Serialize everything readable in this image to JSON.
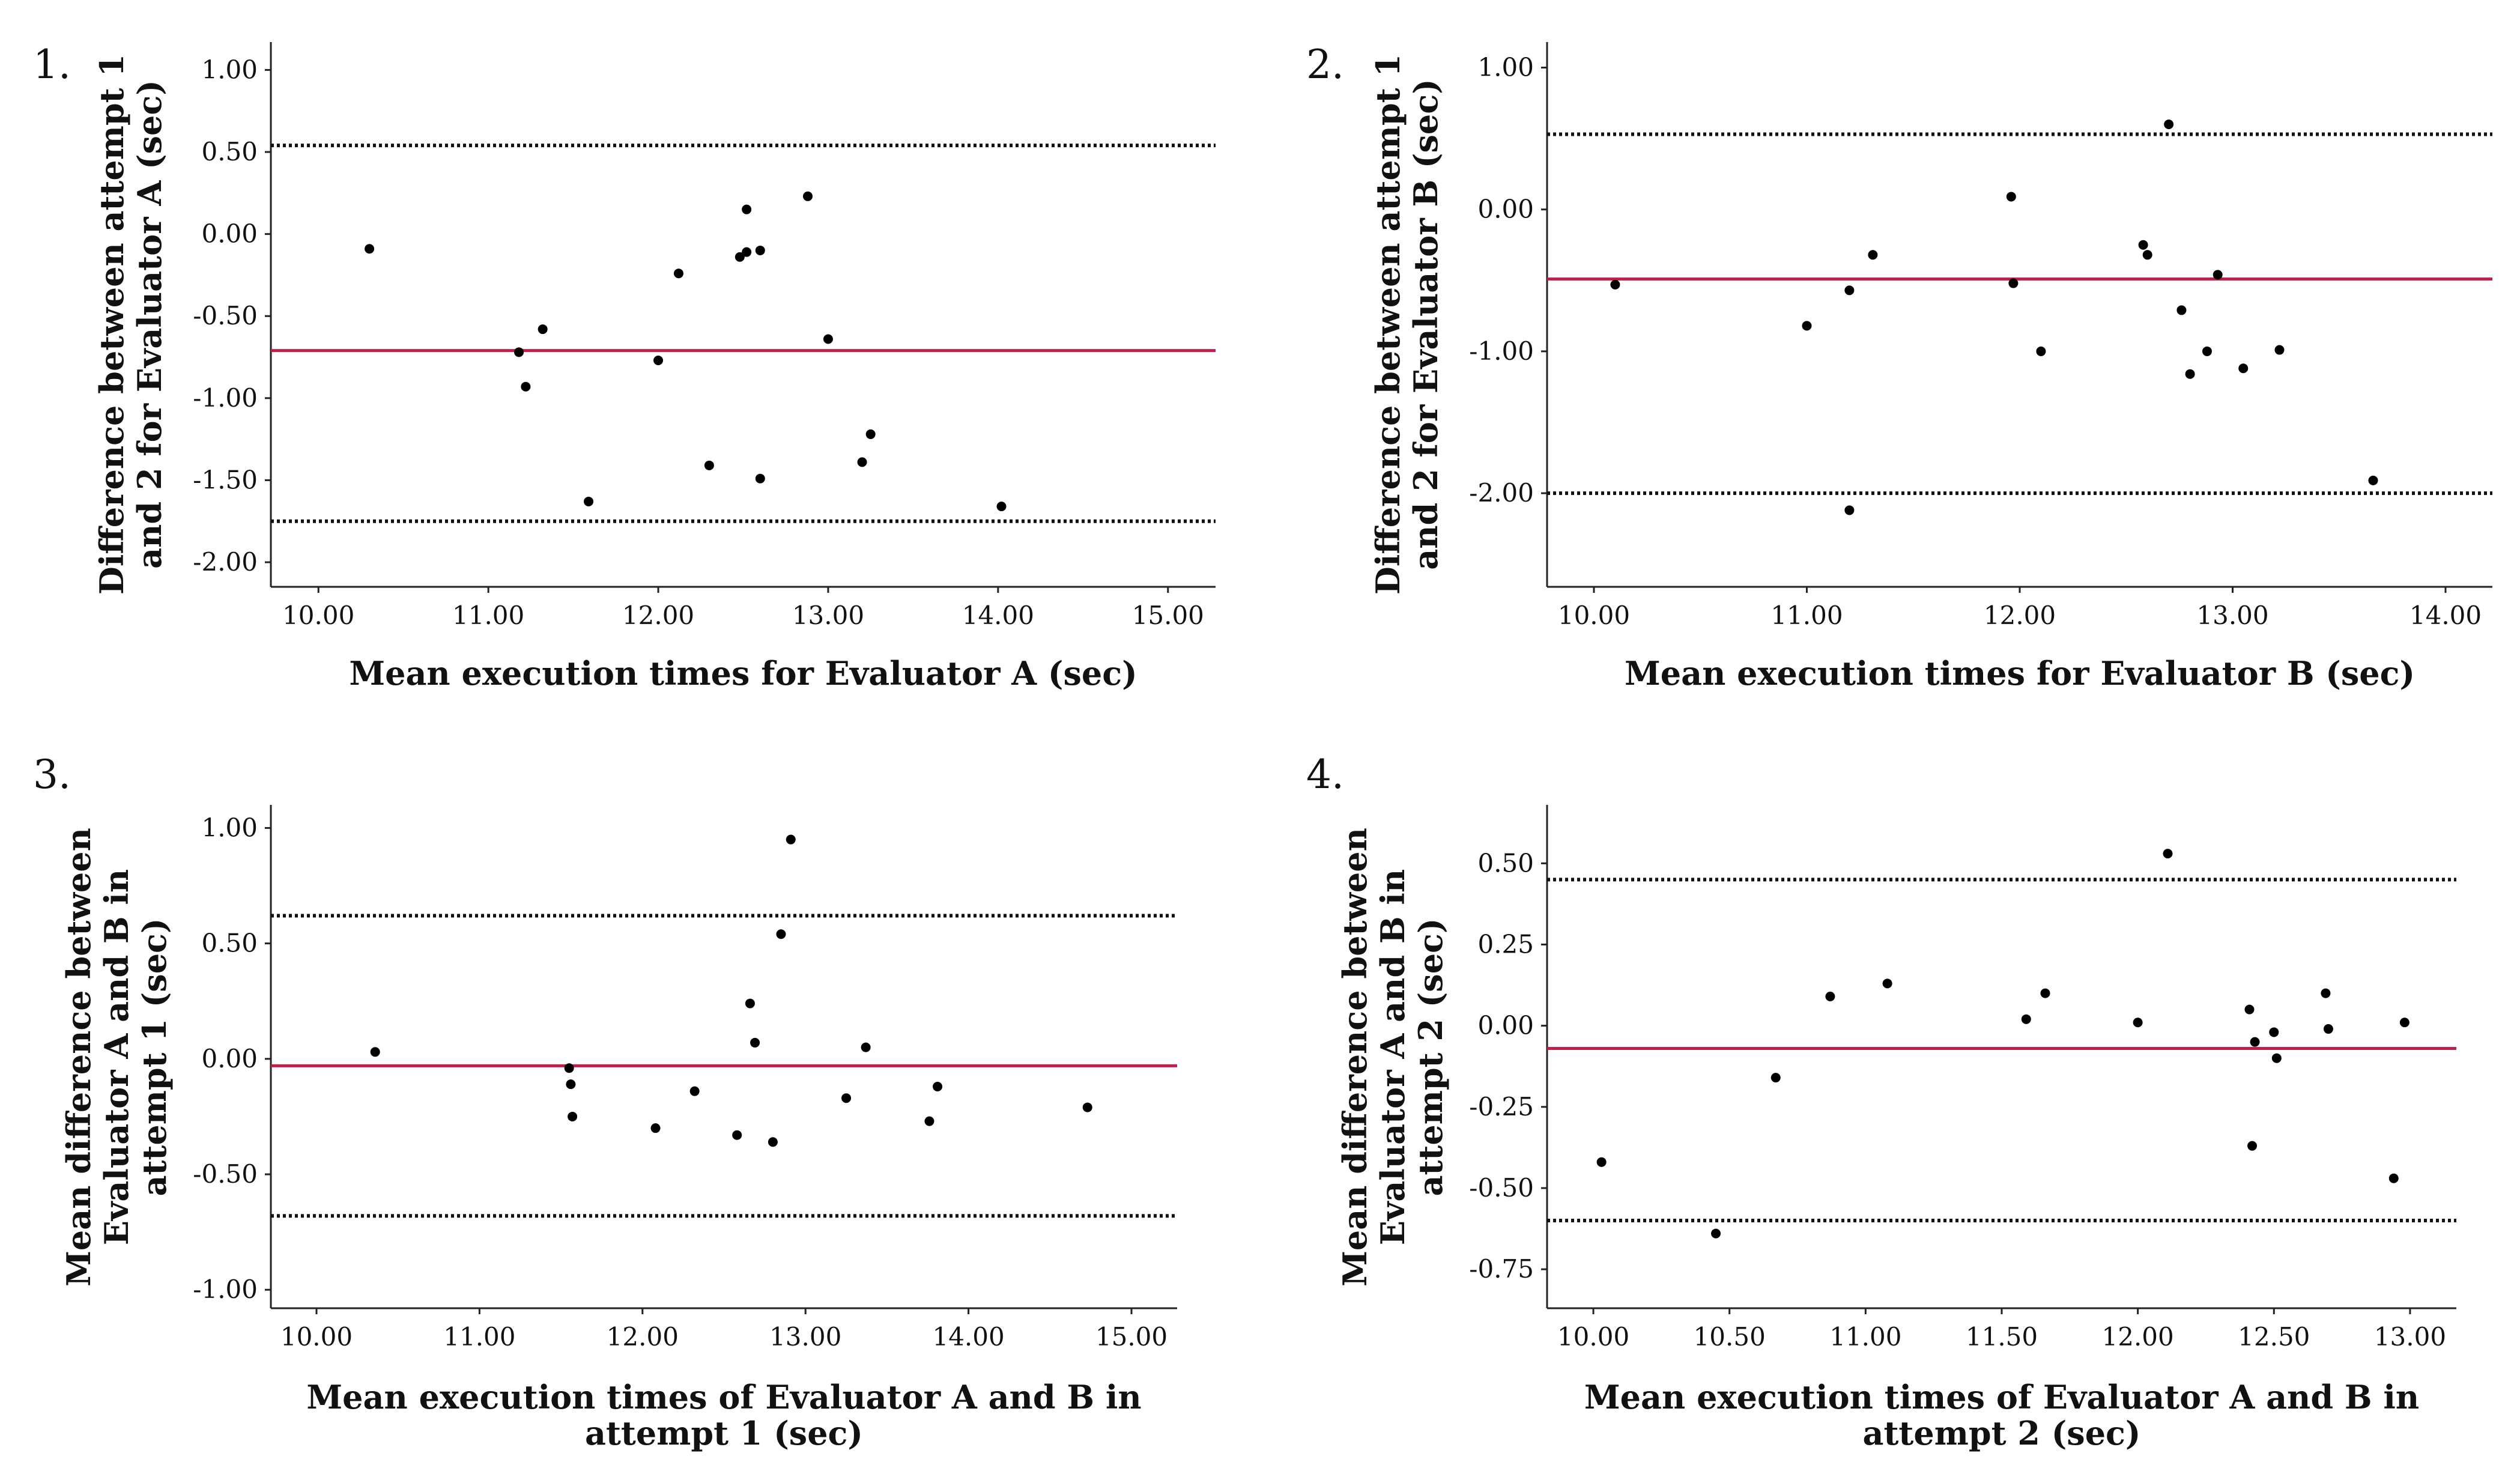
{
  "chart_data": [
    {
      "type": "scatter",
      "panel_label": "1.",
      "title": "",
      "xlabel": "Mean execution times for Evaluator A (sec)",
      "ylabel_lines": [
        "Difference between attempt 1",
        "and 2 for Evaluator A (sec)"
      ],
      "xlim": [
        9.72,
        15.28
      ],
      "ylim": [
        -2.15,
        1.17
      ],
      "xticks": [
        10,
        11,
        12,
        13,
        14,
        15
      ],
      "xtick_labels": [
        "10.00",
        "11.00",
        "12.00",
        "13.00",
        "14.00",
        "15.00"
      ],
      "yticks": [
        1,
        0.5,
        0,
        -0.5,
        -1,
        -1.5,
        -2
      ],
      "ytick_labels": [
        "1.00",
        "0.50",
        "0.00",
        "-0.50",
        "-1.00",
        "-1.50",
        "-2.00"
      ],
      "mean_line": -0.71,
      "limits_of_agreement": [
        0.54,
        -1.75
      ],
      "points": [
        [
          10.3,
          -0.09
        ],
        [
          11.18,
          -0.72
        ],
        [
          11.22,
          -0.93
        ],
        [
          11.32,
          -0.58
        ],
        [
          11.59,
          -1.63
        ],
        [
          12.0,
          -0.77
        ],
        [
          12.12,
          -0.24
        ],
        [
          12.3,
          -1.41
        ],
        [
          12.48,
          -0.14
        ],
        [
          12.52,
          -0.11
        ],
        [
          12.52,
          0.15
        ],
        [
          12.6,
          -0.1
        ],
        [
          12.6,
          -1.49
        ],
        [
          12.88,
          0.23
        ],
        [
          13.0,
          -0.64
        ],
        [
          13.2,
          -1.39
        ],
        [
          13.25,
          -1.22
        ],
        [
          14.02,
          -1.66
        ]
      ]
    },
    {
      "type": "scatter",
      "panel_label": "2.",
      "title": "",
      "xlabel": "Mean execution times for Evaluator B (sec)",
      "ylabel_lines": [
        "Difference between attempt 1",
        "and 2 for Evaluator B (sec)"
      ],
      "xlim": [
        9.78,
        14.22
      ],
      "ylim": [
        -2.66,
        1.18
      ],
      "xticks": [
        10,
        11,
        12,
        13,
        14
      ],
      "xtick_labels": [
        "10.00",
        "11.00",
        "12.00",
        "13.00",
        "14.00"
      ],
      "yticks": [
        1,
        0,
        -1,
        -2
      ],
      "ytick_labels": [
        "1.00",
        "0.00",
        "-1.00",
        "-2.00"
      ],
      "mean_line": -0.49,
      "limits_of_agreement": [
        0.53,
        -2.0
      ],
      "points": [
        [
          10.1,
          -0.53
        ],
        [
          11.0,
          -0.82
        ],
        [
          11.2,
          -2.12
        ],
        [
          11.2,
          -0.57
        ],
        [
          11.31,
          -0.32
        ],
        [
          11.96,
          0.09
        ],
        [
          11.97,
          -0.52
        ],
        [
          12.1,
          -1.0
        ],
        [
          12.58,
          -0.25
        ],
        [
          12.6,
          -0.32
        ],
        [
          12.7,
          0.6
        ],
        [
          12.76,
          -0.71
        ],
        [
          12.8,
          -1.16
        ],
        [
          12.88,
          -1.0
        ],
        [
          12.93,
          -0.46
        ],
        [
          13.05,
          -1.12
        ],
        [
          13.22,
          -0.99
        ],
        [
          13.66,
          -1.91
        ]
      ]
    },
    {
      "type": "scatter",
      "panel_label": "3.",
      "title": "",
      "xlabel_lines": [
        "Mean execution times of Evaluator A and B in",
        "attempt 1 (sec)"
      ],
      "ylabel_lines": [
        "Mean difference between",
        "Evaluator A and B in",
        "attempt 1 (sec)"
      ],
      "xlim": [
        9.72,
        15.28
      ],
      "ylim": [
        -1.08,
        1.1
      ],
      "xticks": [
        10,
        11,
        12,
        13,
        14,
        15
      ],
      "xtick_labels": [
        "10.00",
        "11.00",
        "12.00",
        "13.00",
        "14.00",
        "15.00"
      ],
      "yticks": [
        1,
        0.5,
        0,
        -0.5,
        -1
      ],
      "ytick_labels": [
        "1.00",
        "0.50",
        "0.00",
        "-0.50",
        "-1.00"
      ],
      "mean_line": -0.03,
      "limits_of_agreement": [
        0.62,
        -0.68
      ],
      "points": [
        [
          10.36,
          0.03
        ],
        [
          11.55,
          -0.04
        ],
        [
          11.56,
          -0.11
        ],
        [
          11.57,
          -0.25
        ],
        [
          12.08,
          -0.3
        ],
        [
          12.32,
          -0.14
        ],
        [
          12.58,
          -0.33
        ],
        [
          12.66,
          0.24
        ],
        [
          12.69,
          0.07
        ],
        [
          12.8,
          -0.36
        ],
        [
          12.85,
          0.54
        ],
        [
          12.91,
          0.95
        ],
        [
          13.25,
          -0.17
        ],
        [
          13.37,
          0.05
        ],
        [
          13.76,
          -0.27
        ],
        [
          13.81,
          -0.12
        ],
        [
          14.73,
          -0.21
        ]
      ]
    },
    {
      "type": "scatter",
      "panel_label": "4.",
      "title": "",
      "xlabel_lines": [
        "Mean execution times of Evaluator A and B in",
        "attempt 2 (sec)"
      ],
      "ylabel_lines": [
        "Mean difference between",
        "Evaluator A and B in",
        "attempt 2 (sec)"
      ],
      "xlim": [
        9.83,
        13.17
      ],
      "ylim": [
        -0.87,
        0.68
      ],
      "xticks": [
        10,
        10.5,
        11,
        11.5,
        12,
        12.5,
        13
      ],
      "xtick_labels": [
        "10.00",
        "10.50",
        "11.00",
        "11.50",
        "12.00",
        "12.50",
        "13.00"
      ],
      "yticks": [
        0.5,
        0.25,
        0,
        -0.25,
        -0.5,
        -0.75
      ],
      "ytick_labels": [
        "0.50",
        "0.25",
        "0.00",
        "-0.25",
        "-0.50",
        "-0.75"
      ],
      "mean_line": -0.07,
      "limits_of_agreement": [
        0.45,
        -0.6
      ],
      "points": [
        [
          10.03,
          -0.42
        ],
        [
          10.45,
          -0.64
        ],
        [
          10.67,
          -0.16
        ],
        [
          10.87,
          0.09
        ],
        [
          11.08,
          0.13
        ],
        [
          11.59,
          0.02
        ],
        [
          11.66,
          0.1
        ],
        [
          12.0,
          0.01
        ],
        [
          12.11,
          0.53
        ],
        [
          12.41,
          0.05
        ],
        [
          12.42,
          -0.37
        ],
        [
          12.43,
          -0.05
        ],
        [
          12.5,
          -0.02
        ],
        [
          12.51,
          -0.1
        ],
        [
          12.69,
          0.1
        ],
        [
          12.7,
          -0.01
        ],
        [
          12.94,
          -0.47
        ],
        [
          12.98,
          0.01
        ]
      ]
    }
  ]
}
